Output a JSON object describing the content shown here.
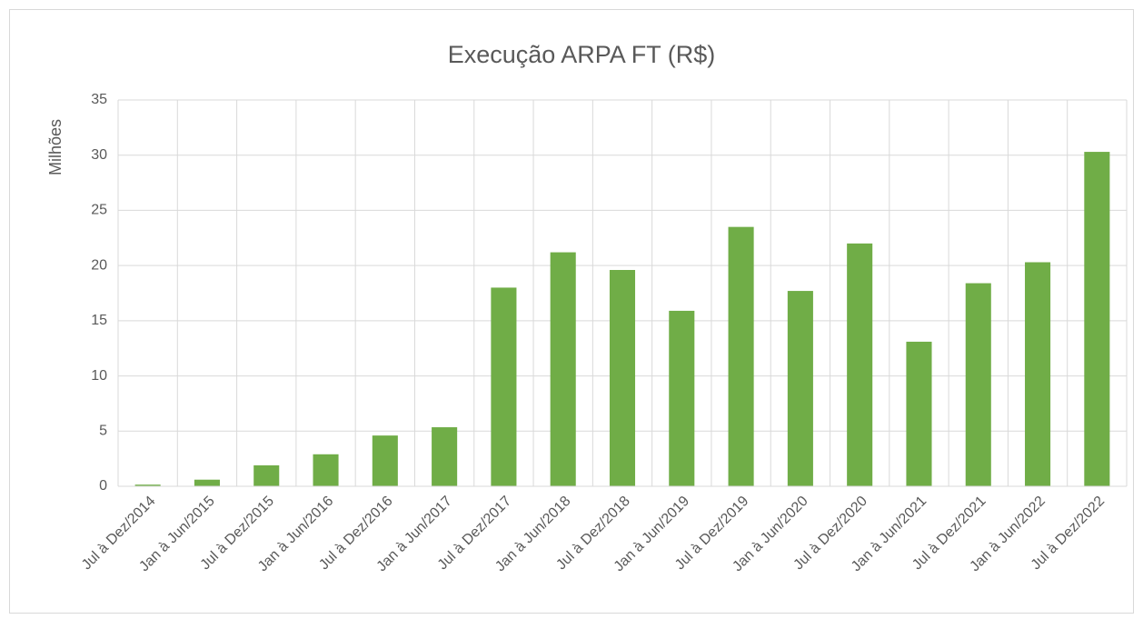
{
  "chart_data": {
    "type": "bar",
    "title": "Execução ARPA FT (R$)",
    "y_label": "Milhões",
    "categories": [
      "Jul à Dez/2014",
      "Jan à Jun/2015",
      "Jul à Dez/2015",
      "Jan à Jun/2016",
      "Jul à Dez/2016",
      "Jan à Jun/2017",
      "Jul à Dez/2017",
      "Jan à Jun/2018",
      "Jul à Dez/2018",
      "Jan à Jun/2019",
      "Jul à Dez/2019",
      "Jan à Jun/2020",
      "Jul à Dez/2020",
      "Jan à Jun/2021",
      "Jul à Dez/2021",
      "Jan à Jun/2022",
      "Jul à Dez/2022"
    ],
    "values": [
      0.15,
      0.6,
      1.9,
      2.9,
      4.6,
      5.35,
      18.0,
      21.2,
      19.6,
      15.9,
      23.5,
      17.7,
      22.0,
      13.1,
      18.4,
      20.3,
      30.3
    ],
    "color": "#70ad47",
    "ylim": [
      0,
      35
    ],
    "yticks": [
      0,
      5,
      10,
      15,
      20,
      25,
      30,
      35
    ],
    "grid": true
  }
}
